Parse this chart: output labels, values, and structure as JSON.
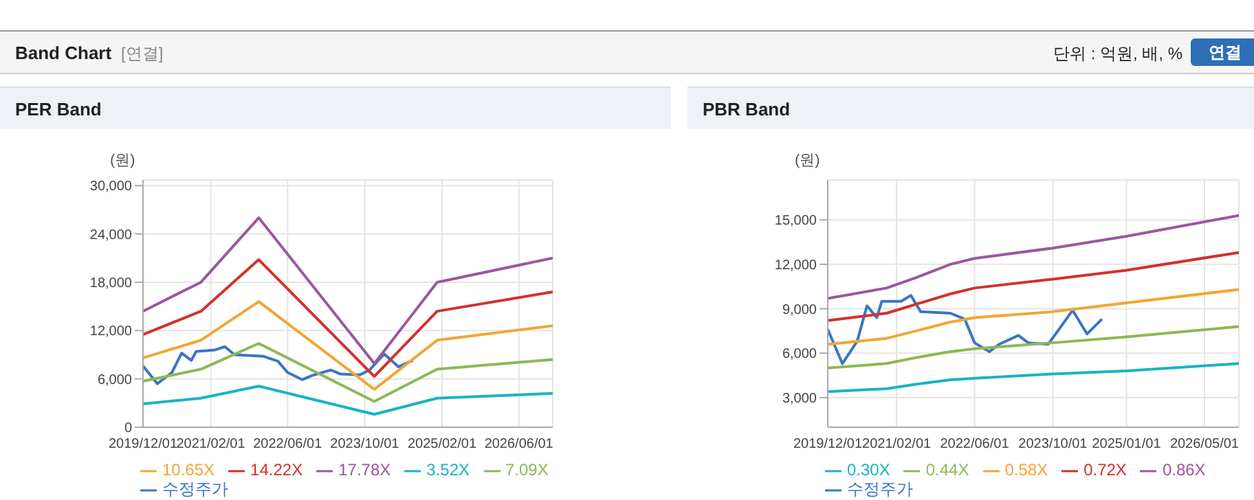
{
  "chart_data": [
    {
      "type": "other",
      "title": "Band Chart",
      "annotations": [
        "[연결]",
        "단위 : 억원, 배, %",
        "연결"
      ]
    },
    {
      "type": "line",
      "title": "PER Band",
      "ylabel": "(원)",
      "xlim": [
        "2019-12-01",
        "2027-01-01"
      ],
      "xticks": [
        {
          "value": "2019-12-01",
          "label": "2019/12/01"
        },
        {
          "value": "2021-02-01",
          "label": "2021/02/01"
        },
        {
          "value": "2022-06-01",
          "label": "2022/06/01"
        },
        {
          "value": "2023-10-01",
          "label": "2023/10/01"
        },
        {
          "value": "2025-02-01",
          "label": "2025/02/01"
        },
        {
          "value": "2026-06-01",
          "label": "2026/06/01"
        }
      ],
      "ylim": [
        0,
        30700
      ],
      "yticks": [
        {
          "value": 0,
          "label": "0"
        },
        {
          "value": 6000,
          "label": "6,000"
        },
        {
          "value": 12000,
          "label": "12,000"
        },
        {
          "value": 18000,
          "label": "18,000"
        },
        {
          "value": 24000,
          "label": "24,000"
        },
        {
          "value": 30000,
          "label": "30,000"
        }
      ],
      "grid": true,
      "legend": "bottom",
      "marker": "none",
      "line_style": "solid",
      "series": [
        {
          "name": "수정주가",
          "color": "#3a76c4",
          "x": [
            "2019-12-01",
            "2020-03-01",
            "2020-06-01",
            "2020-08-01",
            "2020-10-01",
            "2020-11-01",
            "2021-03-01",
            "2021-05-01",
            "2021-07-01",
            "2022-01-01",
            "2022-04-01",
            "2022-06-01",
            "2022-09-01",
            "2022-11-01",
            "2023-03-01",
            "2023-05-01",
            "2023-09-01",
            "2023-11-01",
            "2024-02-01",
            "2024-05-01",
            "2024-08-01"
          ],
          "values": [
            7600,
            5400,
            6800,
            9200,
            8300,
            9400,
            9600,
            10000,
            9000,
            8800,
            8200,
            6800,
            5900,
            6400,
            7100,
            6600,
            6500,
            7100,
            9100,
            7500,
            8300
          ]
        },
        {
          "name": "3.52X",
          "color": "#1ab3c4",
          "x": [
            "2019-12-01",
            "2020-12-01",
            "2021-12-01",
            "2023-12-01",
            "2025-01-01",
            "2027-01-01"
          ],
          "values": [
            2900,
            3600,
            5100,
            1600,
            3600,
            4200
          ]
        },
        {
          "name": "7.09X",
          "color": "#8db856",
          "x": [
            "2019-12-01",
            "2020-12-01",
            "2021-12-01",
            "2023-12-01",
            "2025-01-01",
            "2027-01-01"
          ],
          "values": [
            5700,
            7200,
            10400,
            3200,
            7200,
            8400
          ]
        },
        {
          "name": "10.65X",
          "color": "#f2a535",
          "x": [
            "2019-12-01",
            "2020-12-01",
            "2021-12-01",
            "2023-12-01",
            "2025-01-01",
            "2027-01-01"
          ],
          "values": [
            8600,
            10800,
            15600,
            4700,
            10800,
            12600
          ]
        },
        {
          "name": "14.22X",
          "color": "#d2312c",
          "x": [
            "2019-12-01",
            "2020-12-01",
            "2021-12-01",
            "2023-12-01",
            "2025-01-01",
            "2027-01-01"
          ],
          "values": [
            11500,
            14400,
            20800,
            6300,
            14400,
            16800
          ]
        },
        {
          "name": "17.78X",
          "color": "#9b57a1",
          "x": [
            "2019-12-01",
            "2020-12-01",
            "2021-12-01",
            "2023-12-01",
            "2025-01-01",
            "2027-01-01"
          ],
          "values": [
            14400,
            18000,
            26000,
            7900,
            18000,
            21000
          ]
        }
      ]
    },
    {
      "type": "line",
      "title": "PBR Band",
      "ylabel": "(원)",
      "xlim": [
        "2019-12-01",
        "2026-12-01"
      ],
      "xticks": [
        {
          "value": "2019-12-01",
          "label": "2019/12/01"
        },
        {
          "value": "2021-02-01",
          "label": "2021/02/01"
        },
        {
          "value": "2022-06-01",
          "label": "2022/06/01"
        },
        {
          "value": "2023-10-01",
          "label": "2023/10/01"
        },
        {
          "value": "2025-01-01",
          "label": "2025/01/01"
        },
        {
          "value": "2026-05-01",
          "label": "2026/05/01"
        }
      ],
      "ylim": [
        1000,
        17700
      ],
      "yticks": [
        {
          "value": 3000,
          "label": "3,000"
        },
        {
          "value": 6000,
          "label": "6,000"
        },
        {
          "value": 9000,
          "label": "9,000"
        },
        {
          "value": 12000,
          "label": "12,000"
        },
        {
          "value": 15000,
          "label": "15,000"
        }
      ],
      "grid": true,
      "legend": "bottom",
      "marker": "none",
      "line_style": "solid",
      "series": [
        {
          "name": "수정주가",
          "color": "#3a76c4",
          "x": [
            "2019-12-01",
            "2020-03-01",
            "2020-06-01",
            "2020-08-01",
            "2020-10-01",
            "2020-11-01",
            "2021-03-01",
            "2021-05-01",
            "2021-07-01",
            "2022-01-01",
            "2022-04-01",
            "2022-06-01",
            "2022-09-01",
            "2022-11-01",
            "2023-03-01",
            "2023-05-01",
            "2023-09-01",
            "2023-11-01",
            "2024-02-01",
            "2024-05-01",
            "2024-08-01"
          ],
          "values": [
            7600,
            5300,
            6800,
            9200,
            8400,
            9500,
            9500,
            9900,
            8800,
            8700,
            8300,
            6700,
            6100,
            6600,
            7200,
            6700,
            6600,
            7500,
            8900,
            7300,
            8300
          ]
        },
        {
          "name": "0.30X",
          "color": "#1ab3c4",
          "x": [
            "2019-12-01",
            "2020-12-01",
            "2021-06-01",
            "2022-01-01",
            "2022-06-01",
            "2023-10-01",
            "2025-01-01",
            "2026-12-01"
          ],
          "values": [
            3400,
            3600,
            3900,
            4200,
            4300,
            4600,
            4800,
            5300
          ]
        },
        {
          "name": "0.44X",
          "color": "#8db856",
          "x": [
            "2019-12-01",
            "2020-12-01",
            "2021-06-01",
            "2022-01-01",
            "2022-06-01",
            "2023-10-01",
            "2025-01-01",
            "2026-12-01"
          ],
          "values": [
            5000,
            5300,
            5700,
            6100,
            6300,
            6700,
            7100,
            7800
          ]
        },
        {
          "name": "0.58X",
          "color": "#f2a535",
          "x": [
            "2019-12-01",
            "2020-12-01",
            "2021-06-01",
            "2022-01-01",
            "2022-06-01",
            "2023-10-01",
            "2025-01-01",
            "2026-12-01"
          ],
          "values": [
            6600,
            7000,
            7500,
            8100,
            8400,
            8800,
            9400,
            10300
          ]
        },
        {
          "name": "0.72X",
          "color": "#d2312c",
          "x": [
            "2019-12-01",
            "2020-12-01",
            "2021-06-01",
            "2022-01-01",
            "2022-06-01",
            "2023-10-01",
            "2025-01-01",
            "2026-12-01"
          ],
          "values": [
            8200,
            8700,
            9300,
            10000,
            10400,
            11000,
            11600,
            12800
          ]
        },
        {
          "name": "0.86X",
          "color": "#9b57a1",
          "x": [
            "2019-12-01",
            "2020-12-01",
            "2021-06-01",
            "2022-01-01",
            "2022-06-01",
            "2023-10-01",
            "2025-01-01",
            "2026-12-01"
          ],
          "values": [
            9700,
            10400,
            11100,
            12000,
            12400,
            13100,
            13900,
            15300
          ]
        }
      ]
    }
  ]
}
